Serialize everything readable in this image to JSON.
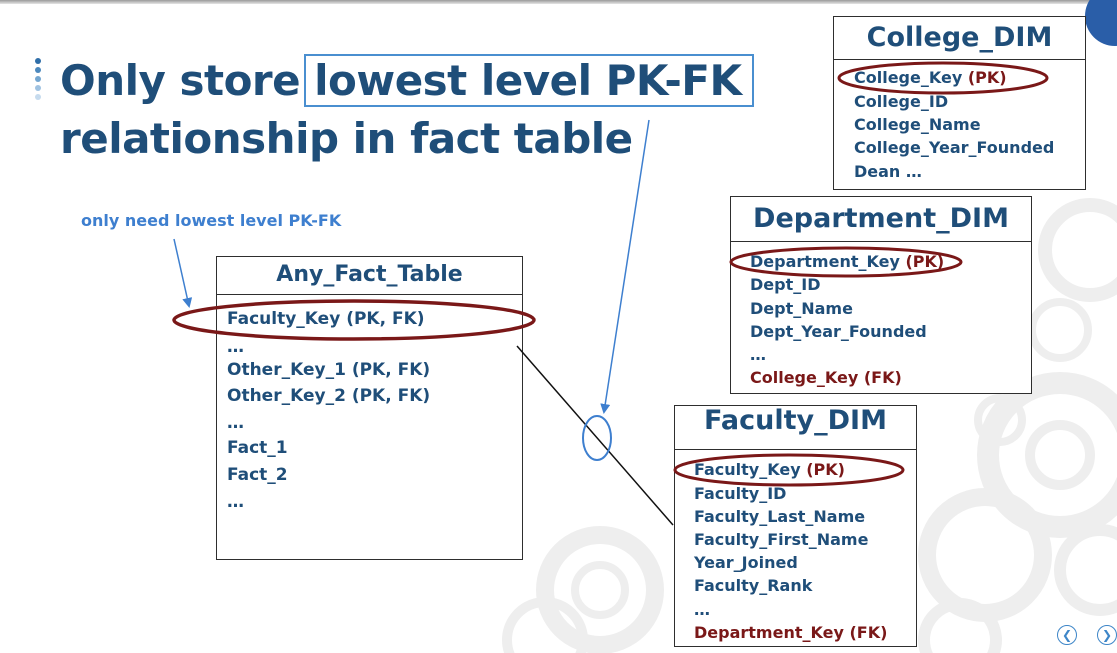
{
  "slide": {
    "title_prefix": "Only store",
    "title_highlight": "lowest level PK-FK",
    "title_line2": "relationship in fact table",
    "annotation": "only need lowest level PK-FK"
  },
  "tables": {
    "fact": {
      "name": "Any_Fact_Table",
      "rows": [
        "Faculty_Key (PK, FK)",
        "…",
        "Other_Key_1 (PK, FK)",
        "Other_Key_2 (PK, FK)",
        "…",
        "Fact_1",
        "Fact_2",
        "…"
      ]
    },
    "college": {
      "name": "College_DIM",
      "pk_name": "College_Key",
      "pk_tag": "(PK)",
      "rows": [
        "College_ID",
        "College_Name",
        "College_Year_Founded",
        "Dean …"
      ]
    },
    "department": {
      "name": "Department_DIM",
      "pk_name": "Department_Key",
      "pk_tag": "(PK)",
      "rows": [
        "Dept_ID",
        "Dept_Name",
        "Dept_Year_Founded",
        "…"
      ],
      "fk": "College_Key (FK)"
    },
    "faculty": {
      "name": "Faculty_DIM",
      "pk_name": "Faculty_Key",
      "pk_tag": "(PK)",
      "rows": [
        "Faculty_ID",
        "Faculty_Last_Name",
        "Faculty_First_Name",
        "Year_Joined",
        "Faculty_Rank",
        "…"
      ],
      "fk": "Department_Key (FK)"
    }
  },
  "colors": {
    "title": "#1f4e79",
    "accent_blue": "#3e7fcf",
    "key_red": "#7a1818",
    "ellipse": "#7a1818"
  },
  "navigation": {
    "prev_icon": "chevron-left-icon",
    "next_icon": "chevron-right-icon"
  }
}
